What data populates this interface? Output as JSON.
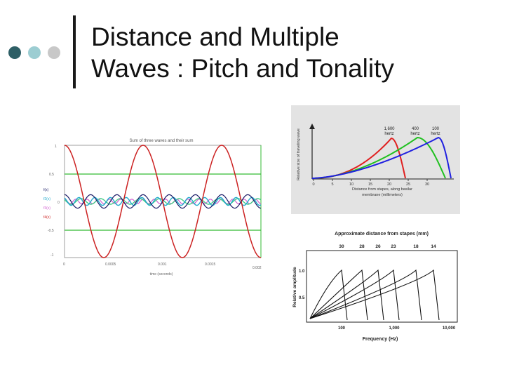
{
  "slide": {
    "title_line1": "Distance and Multiple",
    "title_line2": "Waves : Pitch and Tonality",
    "bullet_colors": [
      "#2e5f66",
      "#9ccdd2",
      "#c8c8c8"
    ],
    "accent_bar_color": "#1a1a1a"
  },
  "figures": {
    "wave_sum": {
      "title": "Sum of three waves and their sum",
      "y_ticks": [
        "1",
        "0.5",
        "0",
        "-0.5",
        "-1"
      ],
      "x_ticks": [
        "0",
        "0.0005",
        "0.001",
        "0.0015",
        "0.002"
      ],
      "xlabel": "time (seconds)",
      "legend": [
        "f(x)",
        "f2(x)",
        "f3(x)",
        "f4(x)"
      ],
      "colors": {
        "sum": "#cc2222",
        "wave1": "#1a1a66",
        "wave2": "#22aacc",
        "wave3": "#44cc88",
        "wave4": "#d060d0",
        "line": "#33bb33"
      }
    },
    "traveling_wave": {
      "ylabel": "Relative size of traveling wave",
      "xlabel_line1": "Distance from stapes, along basilar",
      "xlabel_line2": "membrane (millimeters)",
      "x_ticks": [
        "0",
        "5",
        "10",
        "15",
        "20",
        "25",
        "30"
      ],
      "curves": [
        {
          "label_line1": "1,600",
          "label_line2": "hertz",
          "color": "#e02020"
        },
        {
          "label_line1": "400",
          "label_line2": "hertz",
          "color": "#20c020"
        },
        {
          "label_line1": "100",
          "label_line2": "hertz",
          "color": "#2020e0"
        }
      ]
    },
    "tuning_curves": {
      "top_axis_label": "Approximate distance from stapes (mm)",
      "top_ticks": [
        "30",
        "28",
        "26",
        "23",
        "18",
        "14"
      ],
      "ylabel": "Relative amplitude",
      "y_ticks": [
        "1.0",
        "0.5"
      ],
      "x_ticks": [
        "100",
        "1,000",
        "10,000"
      ],
      "xlabel": "Frequency (Hz)"
    }
  }
}
